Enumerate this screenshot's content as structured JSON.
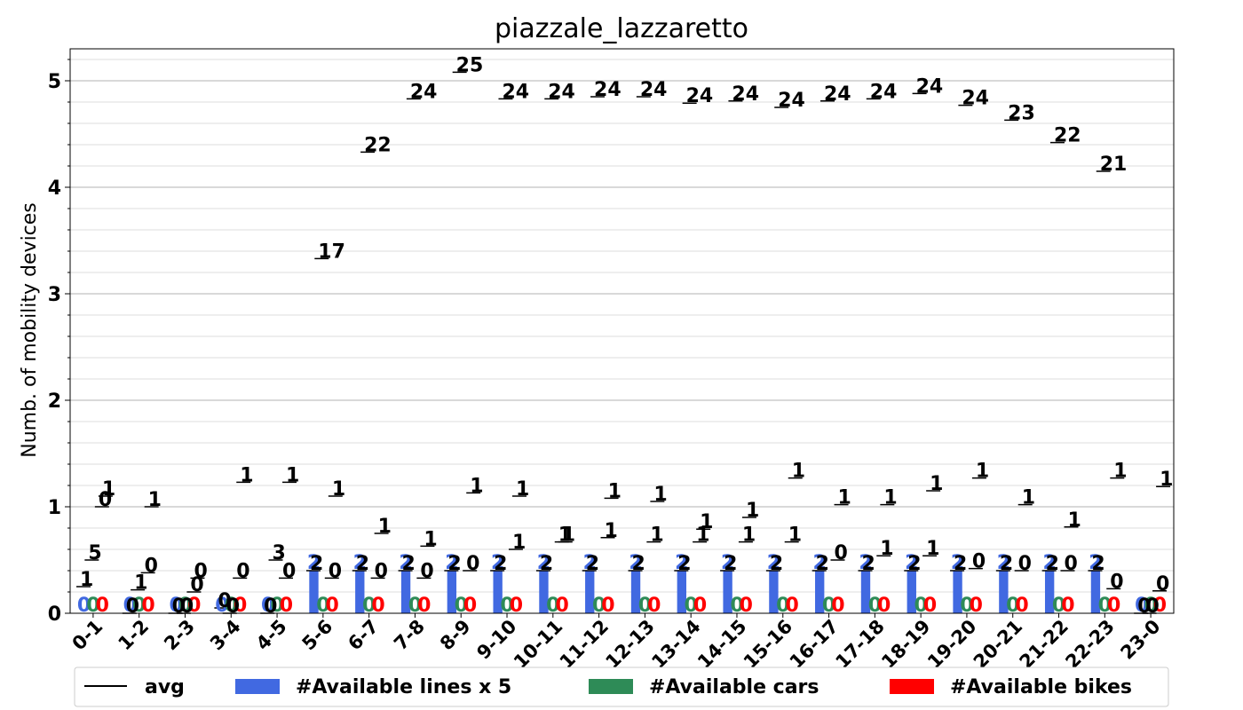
{
  "chart_data": {
    "type": "bar",
    "title": "piazzale_lazzaretto",
    "xlabel": "",
    "ylabel": "Numb. of mobility devices",
    "ylim": [
      0,
      5.3
    ],
    "yticks": [
      "0",
      "1",
      "2",
      "3",
      "4",
      "5"
    ],
    "grid": true,
    "legend_position": "bottom",
    "categories": [
      "0-1",
      "1-2",
      "2-3",
      "3-4",
      "4-5",
      "5-6",
      "6-7",
      "7-8",
      "8-9",
      "9-10",
      "10-11",
      "11-12",
      "12-13",
      "13-14",
      "14-15",
      "15-16",
      "16-17",
      "17-18",
      "18-19",
      "19-20",
      "20-21",
      "21-22",
      "22-23",
      "23-0"
    ],
    "series": [
      {
        "name": "avg",
        "kind": "marker",
        "color": "#000000",
        "values": [
          [
            1.1,
            1.0,
            0.5,
            0.25
          ],
          [
            1.0,
            0.38,
            0.22,
            0.0
          ],
          [
            0.33,
            0.2,
            0.0,
            0.0
          ],
          [
            1.23,
            0.33,
            0.0,
            0.05
          ],
          [
            1.23,
            0.33,
            0.5,
            0.0
          ],
          [
            1.1,
            0.33,
            3.33,
            0.4
          ],
          [
            0.75,
            0.33,
            4.33,
            0.4
          ],
          [
            0.63,
            0.33,
            4.83,
            0.4
          ],
          [
            1.13,
            0.4,
            5.08,
            0.4
          ],
          [
            1.1,
            0.6,
            4.83,
            0.4
          ],
          [
            0.67,
            0.67,
            4.83,
            0.4
          ],
          [
            1.08,
            0.71,
            4.85,
            0.4
          ],
          [
            1.05,
            0.67,
            4.85,
            0.4
          ],
          [
            0.79,
            0.67,
            4.79,
            0.4
          ],
          [
            0.9,
            0.67,
            4.81,
            0.4
          ],
          [
            1.27,
            0.67,
            4.75,
            0.4
          ],
          [
            1.02,
            0.5,
            4.81,
            0.4
          ],
          [
            1.02,
            0.54,
            4.83,
            0.4
          ],
          [
            1.15,
            0.54,
            4.88,
            0.4
          ],
          [
            1.27,
            0.42,
            4.77,
            0.4
          ],
          [
            1.02,
            0.4,
            4.63,
            0.4
          ],
          [
            0.81,
            0.4,
            4.42,
            0.4
          ],
          [
            1.27,
            0.23,
            4.15,
            0.4
          ],
          [
            1.19,
            0.21,
            0.0,
            0.0
          ]
        ],
        "labels": [
          [
            "1",
            "0",
            "5",
            "1"
          ],
          [
            "1",
            "0",
            "1",
            "0"
          ],
          [
            "0",
            "0",
            "0",
            "0"
          ],
          [
            "1",
            "0",
            "0",
            "0"
          ],
          [
            "1",
            "0",
            "3",
            "0"
          ],
          [
            "1",
            "0",
            "17",
            "2"
          ],
          [
            "1",
            "0",
            "22",
            "2"
          ],
          [
            "1",
            "0",
            "24",
            "2"
          ],
          [
            "1",
            "0",
            "25",
            "2"
          ],
          [
            "1",
            "1",
            "24",
            "2"
          ],
          [
            "1",
            "1",
            "24",
            "2"
          ],
          [
            "1",
            "1",
            "24",
            "2"
          ],
          [
            "1",
            "1",
            "24",
            "2"
          ],
          [
            "1",
            "1",
            "24",
            "2"
          ],
          [
            "1",
            "1",
            "24",
            "2"
          ],
          [
            "1",
            "1",
            "24",
            "2"
          ],
          [
            "1",
            "0",
            "24",
            "2"
          ],
          [
            "1",
            "1",
            "24",
            "2"
          ],
          [
            "1",
            "1",
            "24",
            "2"
          ],
          [
            "1",
            "0",
            "24",
            "2"
          ],
          [
            "1",
            "0",
            "23",
            "2"
          ],
          [
            "1",
            "0",
            "22",
            "2"
          ],
          [
            "1",
            "0",
            "21",
            "2"
          ],
          [
            "1",
            "0",
            "0",
            "0"
          ]
        ]
      },
      {
        "name": "#Available lines x 5",
        "color": "#4169e1",
        "values": [
          0,
          0,
          0,
          0,
          0,
          0.4,
          0.4,
          0.4,
          0.4,
          0.4,
          0.4,
          0.4,
          0.4,
          0.4,
          0.4,
          0.4,
          0.4,
          0.4,
          0.4,
          0.4,
          0.4,
          0.4,
          0.4,
          0
        ],
        "labels": [
          "0",
          "0",
          "0",
          "0",
          "0",
          "2",
          "2",
          "2",
          "2",
          "2",
          "2",
          "2",
          "2",
          "2",
          "2",
          "2",
          "2",
          "2",
          "2",
          "2",
          "2",
          "2",
          "2",
          "0"
        ]
      },
      {
        "name": "#Available cars",
        "color": "#2e8b57",
        "values": [
          0,
          0,
          0,
          0,
          0,
          0,
          0,
          0,
          0,
          0,
          0,
          0,
          0,
          0,
          0,
          0,
          0,
          0,
          0,
          0,
          0,
          0,
          0,
          0
        ],
        "labels": [
          "0",
          "0",
          "0",
          "0",
          "0",
          "0",
          "0",
          "0",
          "0",
          "0",
          "0",
          "0",
          "0",
          "0",
          "0",
          "0",
          "0",
          "0",
          "0",
          "0",
          "0",
          "0",
          "0",
          "0"
        ]
      },
      {
        "name": "#Available bikes",
        "color": "#ff0000",
        "values": [
          0,
          0,
          0,
          0,
          0,
          0,
          0,
          0,
          0,
          0,
          0,
          0,
          0,
          0,
          0,
          0,
          0,
          0,
          0,
          0,
          0,
          0,
          0,
          0
        ],
        "labels": [
          "0",
          "0",
          "0",
          "0",
          "0",
          "0",
          "0",
          "0",
          "0",
          "0",
          "0",
          "0",
          "0",
          "0",
          "0",
          "0",
          "0",
          "0",
          "0",
          "0",
          "0",
          "0",
          "0",
          "0"
        ]
      }
    ]
  }
}
